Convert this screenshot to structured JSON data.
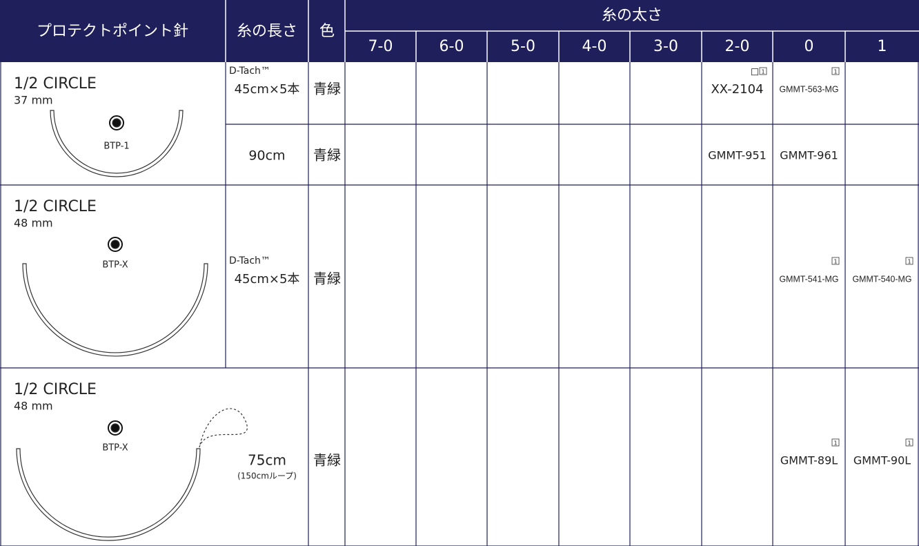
{
  "header": {
    "needle": "プロテクトポイント針",
    "length": "糸の長さ",
    "color": "色",
    "thickness": "糸の太さ",
    "sizes": [
      "7-0",
      "6-0",
      "5-0",
      "4-0",
      "3-0",
      "2-0",
      "0",
      "1"
    ]
  },
  "needles": [
    {
      "shape": "1/2 CIRCLE",
      "size": "37 mm",
      "code": "BTP-1",
      "lines": [
        {
          "length_prefix": "D-Tach™",
          "length": "45cm×5本",
          "color": "青緑",
          "cells": [
            null,
            null,
            null,
            null,
            null,
            {
              "code": "XX-2104",
              "marks": [
                "□",
                "1"
              ]
            },
            {
              "code": "GMMT-563-MG",
              "marks": [
                "1"
              ]
            },
            null
          ]
        },
        {
          "length": "90cm",
          "color": "青緑",
          "cells": [
            null,
            null,
            null,
            null,
            null,
            {
              "code": "GMMT-951"
            },
            {
              "code": "GMMT-961"
            },
            null
          ]
        }
      ]
    },
    {
      "shape": "1/2 CIRCLE",
      "size": "48 mm",
      "code": "BTP-X",
      "lines": [
        {
          "length_prefix": "D-Tach™",
          "length": "45cm×5本",
          "color": "青緑",
          "cells": [
            null,
            null,
            null,
            null,
            null,
            null,
            {
              "code": "GMMT-541-MG",
              "marks": [
                "1"
              ]
            },
            {
              "code": "GMMT-540-MG",
              "marks": [
                "1"
              ]
            }
          ]
        }
      ]
    },
    {
      "shape": "1/2 CIRCLE",
      "size": "48 mm",
      "code": "BTP-X",
      "lines": [
        {
          "length": "75cm",
          "length_note": "(150cmループ)",
          "color": "青緑",
          "cells": [
            null,
            null,
            null,
            null,
            null,
            null,
            {
              "code": "GMMT-89L",
              "marks": [
                "1"
              ]
            },
            {
              "code": "GMMT-90L",
              "marks": [
                "1"
              ]
            }
          ]
        }
      ]
    }
  ]
}
